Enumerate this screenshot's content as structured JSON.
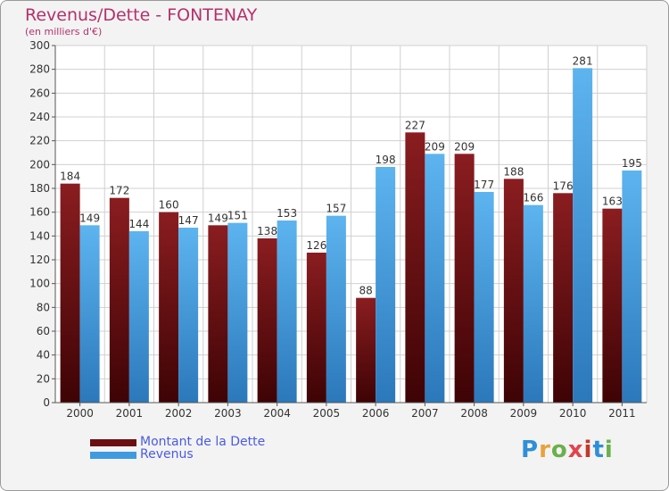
{
  "colors": {
    "debt": "#6b0f12",
    "revenue": "#3f9be0",
    "title": "#b5306b",
    "legend_text": "#4a5be0",
    "grid": "#d0d0d0"
  },
  "logo": {
    "text": "Proxiti",
    "letter_colors": [
      "#2f8fd6",
      "#e8a23a",
      "#6ab04c",
      "#e0444d",
      "#c0392b",
      "#2f8fd6",
      "#6ab04c"
    ]
  },
  "chart_data": {
    "type": "bar",
    "title": "Revenus/Dette - FONTENAY",
    "subtitle": "(en milliers d'€)",
    "categories": [
      "2000",
      "2001",
      "2002",
      "2003",
      "2004",
      "2005",
      "2006",
      "2007",
      "2008",
      "2009",
      "2010",
      "2011"
    ],
    "series": [
      {
        "name": "Montant de la Dette",
        "values": [
          184,
          172,
          160,
          149,
          138,
          126,
          88,
          227,
          209,
          188,
          176,
          163
        ]
      },
      {
        "name": "Revenus",
        "values": [
          149,
          144,
          147,
          151,
          153,
          157,
          198,
          209,
          177,
          166,
          281,
          195
        ]
      }
    ],
    "ylim": [
      0,
      300
    ],
    "yticks": [
      0,
      20,
      40,
      60,
      80,
      100,
      120,
      140,
      160,
      180,
      200,
      220,
      240,
      260,
      280,
      300
    ],
    "grid": true,
    "legend": "bottom-left"
  }
}
